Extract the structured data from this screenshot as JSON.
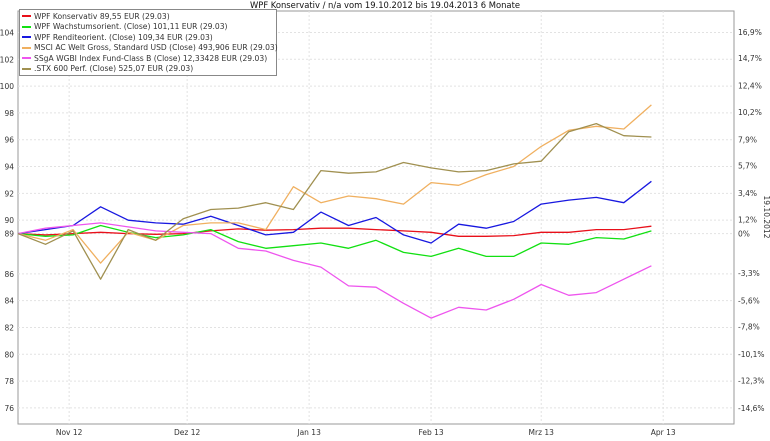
{
  "chart_data": {
    "type": "line",
    "title": "WPF Konservativ / n/a vom 19.10.2012 bis 19.04.2013 6 Monate",
    "date_stamp": "19.10.2012",
    "x_ticks": [
      "Nov 12",
      "Dez 12",
      "Jan 13",
      "Feb 13",
      "Mrz 13",
      "Apr 13"
    ],
    "x_tick_dates": [
      "2012-11-01",
      "2012-12-01",
      "2013-01-01",
      "2013-02-01",
      "2013-03-01",
      "2013-04-01"
    ],
    "xlim": [
      "2012-10-19",
      "2013-04-19"
    ],
    "y_left_ticks": [
      "104",
      "102",
      "100",
      "98",
      "96",
      "94",
      "92",
      "90",
      "89",
      "86",
      "84",
      "82",
      "80",
      "78",
      "76"
    ],
    "y_left_tick_values": [
      104,
      102,
      100,
      98,
      96,
      94,
      92,
      90,
      89,
      86,
      84,
      82,
      80,
      78,
      76
    ],
    "y_right_ticks": [
      "16,9%",
      "14,7%",
      "12,4%",
      "10,2%",
      "7,9%",
      "5,7%",
      "3,4%",
      "1,2%",
      "0%",
      "-3,3%",
      "-5,6%",
      "-7,8%",
      "-10,1%",
      "-12,3%",
      "-14,6%"
    ],
    "y_right_tick_values": [
      16.9,
      14.7,
      12.4,
      10.2,
      7.9,
      5.7,
      3.4,
      1.2,
      0,
      -3.3,
      -5.6,
      -7.8,
      -10.1,
      -12.3,
      -14.6
    ],
    "ylim": [
      74.8,
      105.6
    ],
    "grid": true,
    "legend_placement": "top-left",
    "series": [
      {
        "name": "WPF Konservativ 89,55 EUR (29.03)",
        "color": "#e8101a",
        "x": [
          "2012-10-19",
          "2012-10-26",
          "2012-11-02",
          "2012-11-09",
          "2012-11-16",
          "2012-11-23",
          "2012-11-30",
          "2012-12-07",
          "2012-12-14",
          "2012-12-21",
          "2012-12-28",
          "2013-01-04",
          "2013-01-11",
          "2013-01-18",
          "2013-01-25",
          "2013-02-01",
          "2013-02-08",
          "2013-02-15",
          "2013-02-22",
          "2013-03-01",
          "2013-03-08",
          "2013-03-15",
          "2013-03-22",
          "2013-03-29"
        ],
        "y": [
          89.0,
          88.9,
          89.0,
          89.1,
          89.0,
          88.95,
          89.0,
          89.2,
          89.35,
          89.25,
          89.3,
          89.4,
          89.4,
          89.3,
          89.2,
          89.1,
          88.8,
          88.8,
          88.85,
          89.1,
          89.1,
          89.3,
          89.3,
          89.55
        ]
      },
      {
        "name": "WPF Wachstumsorient. (Close) 101,11 EUR (29.03)",
        "color": "#12e012",
        "x": [
          "2012-10-19",
          "2012-10-26",
          "2012-11-02",
          "2012-11-09",
          "2012-11-16",
          "2012-11-23",
          "2012-11-30",
          "2012-12-07",
          "2012-12-14",
          "2012-12-21",
          "2012-12-28",
          "2013-01-04",
          "2013-01-11",
          "2013-01-18",
          "2013-01-25",
          "2013-02-01",
          "2013-02-08",
          "2013-02-15",
          "2013-02-22",
          "2013-03-01",
          "2013-03-08",
          "2013-03-15",
          "2013-03-22",
          "2013-03-29"
        ],
        "y": [
          89.0,
          88.8,
          88.9,
          89.6,
          89.1,
          88.7,
          88.9,
          89.3,
          88.4,
          87.9,
          88.1,
          88.3,
          87.9,
          88.5,
          87.6,
          87.3,
          87.9,
          87.3,
          87.3,
          88.3,
          88.2,
          88.7,
          88.6,
          89.2
        ]
      },
      {
        "name": "WPF Renditeorient. (Close) 109,34 EUR (29.03)",
        "color": "#1818e0",
        "x": [
          "2012-10-19",
          "2012-10-26",
          "2012-11-02",
          "2012-11-09",
          "2012-11-16",
          "2012-11-23",
          "2012-11-30",
          "2012-12-07",
          "2012-12-14",
          "2012-12-21",
          "2012-12-28",
          "2013-01-04",
          "2013-01-11",
          "2013-01-18",
          "2013-01-25",
          "2013-02-01",
          "2013-02-08",
          "2013-02-15",
          "2013-02-22",
          "2013-03-01",
          "2013-03-08",
          "2013-03-15",
          "2013-03-22",
          "2013-03-29"
        ],
        "y": [
          89.0,
          89.3,
          89.6,
          91.0,
          90.0,
          89.8,
          89.7,
          90.3,
          89.6,
          88.9,
          89.1,
          90.6,
          89.6,
          90.2,
          88.9,
          88.3,
          89.7,
          89.4,
          89.9,
          91.2,
          91.5,
          91.7,
          91.3,
          92.9
        ]
      },
      {
        "name": "MSCI AC Welt Gross, Standard USD (Close) 493,906 EUR (29.03)",
        "color": "#f0b060",
        "x": [
          "2012-10-19",
          "2012-10-26",
          "2012-11-02",
          "2012-11-09",
          "2012-11-16",
          "2012-11-23",
          "2012-11-30",
          "2012-12-07",
          "2012-12-14",
          "2012-12-21",
          "2012-12-28",
          "2013-01-04",
          "2013-01-11",
          "2013-01-18",
          "2013-01-25",
          "2013-02-01",
          "2013-02-08",
          "2013-02-15",
          "2013-02-22",
          "2013-03-01",
          "2013-03-08",
          "2013-03-15",
          "2013-03-22",
          "2013-03-29"
        ],
        "y": [
          89.0,
          88.5,
          89.3,
          86.8,
          89.1,
          88.5,
          89.6,
          89.8,
          89.8,
          89.3,
          92.5,
          91.3,
          91.8,
          91.6,
          91.2,
          92.8,
          92.6,
          93.4,
          94.0,
          95.5,
          96.7,
          97.0,
          96.8,
          98.6
        ]
      },
      {
        "name": "SSgA WGBI Index Fund-Class B (Close) 12,33428 EUR (29.03)",
        "color": "#ee55ee",
        "x": [
          "2012-10-19",
          "2012-10-26",
          "2012-11-02",
          "2012-11-09",
          "2012-11-16",
          "2012-11-23",
          "2012-11-30",
          "2012-12-07",
          "2012-12-14",
          "2012-12-21",
          "2012-12-28",
          "2013-01-04",
          "2013-01-11",
          "2013-01-18",
          "2013-01-25",
          "2013-02-01",
          "2013-02-08",
          "2013-02-15",
          "2013-02-22",
          "2013-03-01",
          "2013-03-08",
          "2013-03-15",
          "2013-03-22",
          "2013-03-29"
        ],
        "y": [
          89.0,
          89.4,
          89.6,
          89.8,
          89.5,
          89.2,
          89.1,
          89.0,
          87.9,
          87.7,
          87.0,
          86.5,
          85.1,
          85.0,
          83.8,
          82.7,
          83.5,
          83.3,
          84.1,
          85.2,
          84.4,
          84.6,
          85.6,
          86.6
        ]
      },
      {
        "name": ".STX 600 Perf. (Close) 525,07 EUR (29.03)",
        "color": "#a09050",
        "x": [
          "2012-10-19",
          "2012-10-26",
          "2012-11-02",
          "2012-11-09",
          "2012-11-16",
          "2012-11-23",
          "2012-11-30",
          "2012-12-07",
          "2012-12-14",
          "2012-12-21",
          "2012-12-28",
          "2013-01-04",
          "2013-01-11",
          "2013-01-18",
          "2013-01-25",
          "2013-02-01",
          "2013-02-08",
          "2013-02-15",
          "2013-02-22",
          "2013-03-01",
          "2013-03-08",
          "2013-03-15",
          "2013-03-22",
          "2013-03-29"
        ],
        "y": [
          89.0,
          88.2,
          89.2,
          85.6,
          89.3,
          88.5,
          90.1,
          90.8,
          90.9,
          91.3,
          90.8,
          93.7,
          93.5,
          93.6,
          94.3,
          93.9,
          93.6,
          93.7,
          94.2,
          94.4,
          96.6,
          97.2,
          96.3,
          96.2
        ]
      }
    ]
  }
}
